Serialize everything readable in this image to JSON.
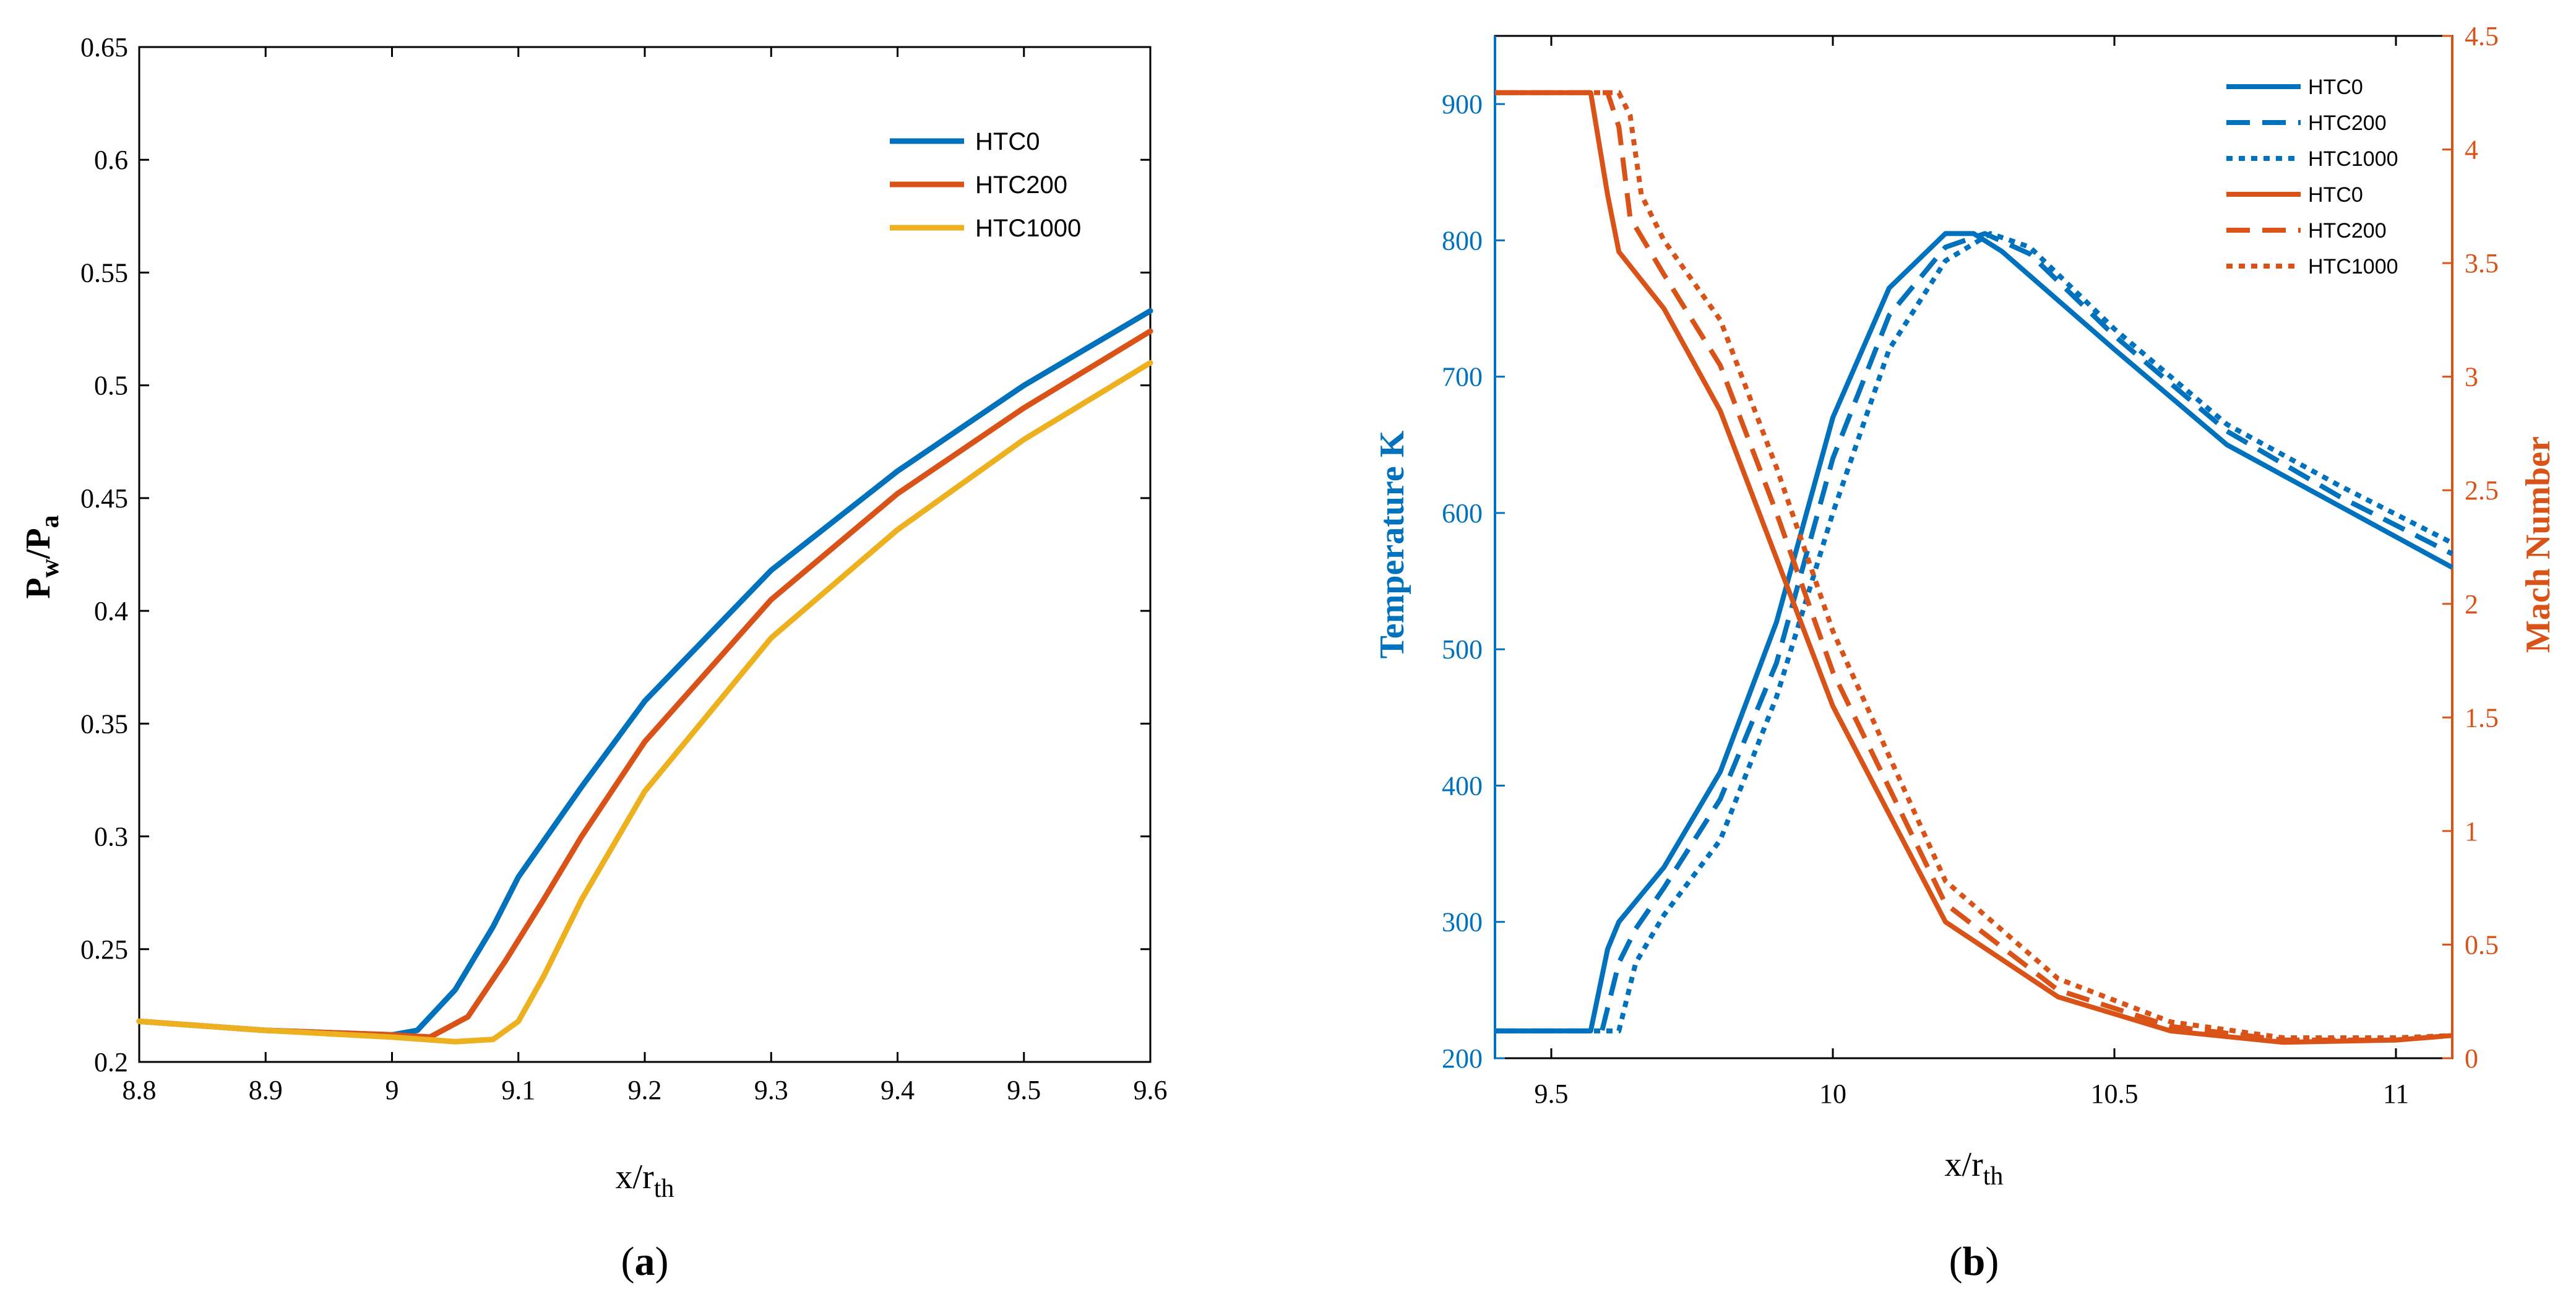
{
  "chart_data": [
    {
      "panel": "(a)",
      "panel_letter": "a",
      "type": "line",
      "xlabel": "x/r",
      "xlabel_sub": "th",
      "ylabel": "P",
      "ylabel_sub1": "w",
      "ylabel_mid": "/P",
      "ylabel_sub2": "a",
      "xlim": [
        8.8,
        9.6
      ],
      "ylim": [
        0.2,
        0.65
      ],
      "xticks": [
        "8.8",
        "8.9",
        "9",
        "9.1",
        "9.2",
        "9.3",
        "9.4",
        "9.5",
        "9.6"
      ],
      "yticks": [
        "0.2",
        "0.25",
        "0.3",
        "0.35",
        "0.4",
        "0.45",
        "0.5",
        "0.55",
        "0.6",
        "0.65"
      ],
      "legend_position": "upper-right",
      "series": [
        {
          "name": "HTC0",
          "color": "#0072BD",
          "style": "solid",
          "x": [
            8.8,
            8.9,
            9.0,
            9.02,
            9.05,
            9.08,
            9.1,
            9.15,
            9.2,
            9.3,
            9.4,
            9.5,
            9.6
          ],
          "y": [
            0.218,
            0.214,
            0.212,
            0.214,
            0.232,
            0.26,
            0.282,
            0.322,
            0.36,
            0.418,
            0.462,
            0.5,
            0.533
          ]
        },
        {
          "name": "HTC200",
          "color": "#D95319",
          "style": "solid",
          "x": [
            8.8,
            8.9,
            9.0,
            9.03,
            9.06,
            9.09,
            9.12,
            9.15,
            9.2,
            9.3,
            9.4,
            9.5,
            9.6
          ],
          "y": [
            0.218,
            0.214,
            0.212,
            0.211,
            0.22,
            0.245,
            0.272,
            0.3,
            0.342,
            0.405,
            0.452,
            0.49,
            0.524
          ]
        },
        {
          "name": "HTC1000",
          "color": "#EDB120",
          "style": "solid",
          "x": [
            8.8,
            8.9,
            9.0,
            9.05,
            9.08,
            9.1,
            9.12,
            9.15,
            9.2,
            9.3,
            9.4,
            9.5,
            9.6
          ],
          "y": [
            0.218,
            0.214,
            0.211,
            0.209,
            0.21,
            0.218,
            0.238,
            0.272,
            0.32,
            0.388,
            0.436,
            0.476,
            0.51
          ]
        }
      ]
    },
    {
      "panel": "(b)",
      "panel_letter": "b",
      "type": "line",
      "xlabel": "x/r",
      "xlabel_sub": "th",
      "ylabel_left": "Temperature K",
      "ylabel_right": "Mach Number",
      "xlim": [
        9.4,
        11.1
      ],
      "ylim_left": [
        200,
        950
      ],
      "ylim_right": [
        0,
        4.5
      ],
      "xticks": [
        "9.5",
        "10",
        "10.5",
        "11"
      ],
      "yticks_left": [
        "200",
        "300",
        "400",
        "500",
        "600",
        "700",
        "800",
        "900"
      ],
      "yticks_right": [
        "0",
        "0.5",
        "1",
        "1.5",
        "2",
        "2.5",
        "3",
        "3.5",
        "4",
        "4.5"
      ],
      "left_axis_color": "#0072BD",
      "right_axis_color": "#D95319",
      "legend_position": "upper-right",
      "series": [
        {
          "name": "HTC0",
          "axis": "left",
          "color": "#0072BD",
          "style": "solid",
          "x": [
            9.4,
            9.57,
            9.6,
            9.62,
            9.7,
            9.8,
            9.9,
            10.0,
            10.1,
            10.2,
            10.25,
            10.3,
            10.5,
            10.7,
            10.9,
            11.1
          ],
          "y": [
            220,
            220,
            280,
            300,
            340,
            410,
            520,
            670,
            765,
            805,
            805,
            792,
            720,
            650,
            605,
            560
          ]
        },
        {
          "name": "HTC200",
          "axis": "left",
          "color": "#0072BD",
          "style": "dash",
          "x": [
            9.4,
            9.59,
            9.62,
            9.65,
            9.7,
            9.8,
            9.9,
            10.0,
            10.1,
            10.2,
            10.27,
            10.35,
            10.5,
            10.7,
            10.9,
            11.1
          ],
          "y": [
            220,
            220,
            270,
            295,
            325,
            390,
            490,
            640,
            745,
            795,
            805,
            790,
            730,
            660,
            612,
            570
          ]
        },
        {
          "name": "HTC1000",
          "axis": "left",
          "color": "#0072BD",
          "style": "dot",
          "x": [
            9.4,
            9.62,
            9.65,
            9.7,
            9.8,
            9.9,
            10.0,
            10.1,
            10.2,
            10.28,
            10.35,
            10.5,
            10.7,
            10.9,
            11.1
          ],
          "y": [
            220,
            220,
            270,
            305,
            360,
            465,
            600,
            720,
            785,
            805,
            795,
            735,
            665,
            620,
            578
          ]
        },
        {
          "name": "HTC0",
          "axis": "right",
          "color": "#D95319",
          "style": "solid",
          "x": [
            9.4,
            9.57,
            9.6,
            9.62,
            9.7,
            9.8,
            9.9,
            10.0,
            10.2,
            10.4,
            10.6,
            10.8,
            11.0,
            11.1
          ],
          "y": [
            4.25,
            4.25,
            3.8,
            3.55,
            3.3,
            2.85,
            2.2,
            1.55,
            0.6,
            0.27,
            0.12,
            0.07,
            0.08,
            0.1
          ]
        },
        {
          "name": "HTC200",
          "axis": "right",
          "color": "#D95319",
          "style": "dash",
          "x": [
            9.4,
            9.6,
            9.62,
            9.64,
            9.7,
            9.8,
            9.9,
            10.0,
            10.2,
            10.4,
            10.6,
            10.8,
            11.0,
            11.1
          ],
          "y": [
            4.25,
            4.25,
            4.1,
            3.7,
            3.45,
            3.05,
            2.4,
            1.7,
            0.68,
            0.3,
            0.14,
            0.08,
            0.08,
            0.1
          ]
        },
        {
          "name": "HTC1000",
          "axis": "right",
          "color": "#D95319",
          "style": "dot",
          "x": [
            9.4,
            9.62,
            9.64,
            9.66,
            9.7,
            9.8,
            9.9,
            10.0,
            10.2,
            10.4,
            10.6,
            10.8,
            11.0,
            11.1
          ],
          "y": [
            4.25,
            4.25,
            4.15,
            3.8,
            3.6,
            3.25,
            2.6,
            1.88,
            0.78,
            0.35,
            0.16,
            0.09,
            0.09,
            0.1
          ]
        }
      ]
    }
  ]
}
